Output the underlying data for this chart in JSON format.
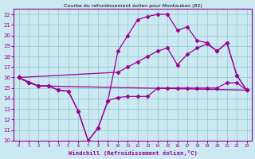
{
  "title": "Courbe du refroidissement éolien pour Montauban (82)",
  "xlabel": "Windchill (Refroidissement éolien,°C)",
  "xlim": [
    -0.5,
    23.5
  ],
  "ylim": [
    10,
    22.5
  ],
  "xticks": [
    0,
    1,
    2,
    3,
    4,
    5,
    6,
    7,
    8,
    9,
    10,
    11,
    12,
    13,
    14,
    15,
    16,
    17,
    18,
    19,
    20,
    21,
    22,
    23
  ],
  "yticks": [
    10,
    11,
    12,
    13,
    14,
    15,
    16,
    17,
    18,
    19,
    20,
    21,
    22
  ],
  "bg_color": "#cce8f0",
  "line_color": "#990099",
  "grid_color": "#88cccc",
  "line1_x": [
    0,
    1,
    2,
    3,
    4,
    5,
    6,
    7,
    8,
    9,
    10,
    11,
    12,
    13,
    14,
    15,
    16,
    17,
    18,
    19,
    20,
    21,
    22,
    23
  ],
  "line1_y": [
    16,
    15.5,
    15.2,
    15.2,
    14.8,
    14.7,
    12.8,
    10.0,
    11.2,
    13.8,
    14.1,
    14.2,
    14.2,
    14.2,
    15.0,
    15.0,
    15.0,
    15.0,
    15.0,
    15.0,
    15.0,
    15.5,
    15.5,
    14.8
  ],
  "line2_x": [
    0,
    1,
    2,
    3,
    4,
    5,
    6,
    7,
    8,
    9,
    10,
    11,
    12,
    13,
    14,
    15,
    16,
    17,
    18,
    19,
    20,
    21,
    22,
    23
  ],
  "line2_y": [
    16,
    15.5,
    15.2,
    15.2,
    14.8,
    14.7,
    12.8,
    10.0,
    11.2,
    13.8,
    18.5,
    20.0,
    21.5,
    21.8,
    22.0,
    22.0,
    20.5,
    20.8,
    19.5,
    19.3,
    18.5,
    19.3,
    16.2,
    14.8
  ],
  "line3_x": [
    0,
    2,
    23
  ],
  "line3_y": [
    16,
    15.2,
    14.8
  ],
  "line4_x": [
    0,
    10,
    11,
    12,
    13,
    14,
    15,
    16,
    17,
    18,
    19,
    20,
    21,
    22,
    23
  ],
  "line4_y": [
    16,
    16.5,
    17.0,
    17.5,
    18.0,
    18.5,
    18.8,
    17.2,
    18.2,
    18.8,
    19.2,
    18.5,
    19.3,
    16.2,
    14.8
  ]
}
